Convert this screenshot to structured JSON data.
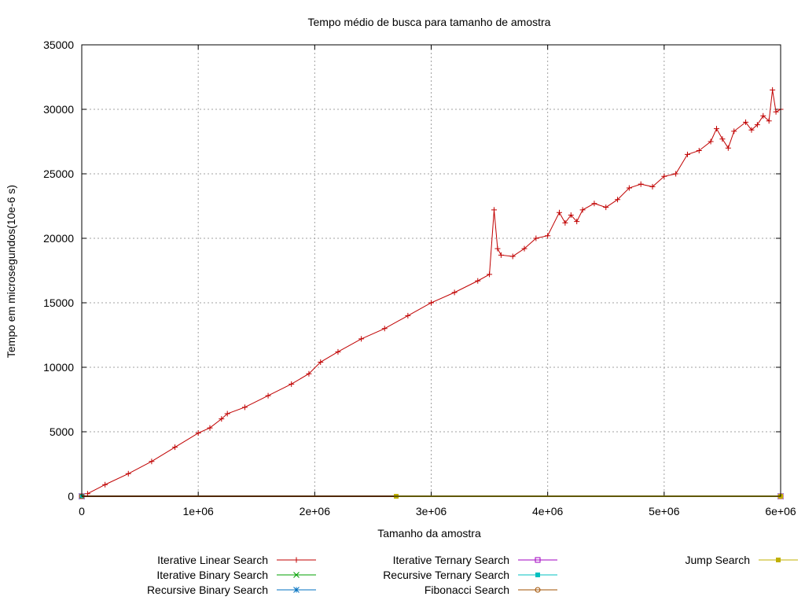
{
  "chart_data": {
    "type": "line",
    "title": "Tempo médio de busca para tamanho de amostra",
    "xlabel": "Tamanho da amostra",
    "ylabel": "Tempo em microsegundos(10e-6 s)",
    "xlim": [
      0,
      6000000
    ],
    "ylim": [
      0,
      35000
    ],
    "x_ticks": [
      0,
      1000000,
      2000000,
      3000000,
      4000000,
      5000000,
      6000000
    ],
    "x_tick_labels": [
      "0",
      "1e+06",
      "2e+06",
      "3e+06",
      "4e+06",
      "5e+06",
      "6e+06"
    ],
    "y_ticks": [
      0,
      5000,
      10000,
      15000,
      20000,
      25000,
      30000,
      35000
    ],
    "y_tick_labels": [
      "0",
      "5000",
      "10000",
      "15000",
      "20000",
      "25000",
      "30000",
      "35000"
    ],
    "grid": true,
    "legend_position": "bottom",
    "series": [
      {
        "name": "Iterative Linear Search",
        "color": "#c00000",
        "marker": "plus",
        "x": [
          50000,
          200000,
          400000,
          600000,
          800000,
          1000000,
          1100000,
          1200000,
          1250000,
          1400000,
          1600000,
          1800000,
          1950000,
          2050000,
          2200000,
          2400000,
          2600000,
          2800000,
          3000000,
          3200000,
          3400000,
          3500000,
          3540000,
          3570000,
          3600000,
          3700000,
          3800000,
          3900000,
          4000000,
          4100000,
          4150000,
          4200000,
          4250000,
          4300000,
          4400000,
          4500000,
          4600000,
          4700000,
          4800000,
          4900000,
          5000000,
          5100000,
          5200000,
          5300000,
          5400000,
          5450000,
          5500000,
          5550000,
          5600000,
          5700000,
          5750000,
          5800000,
          5850000,
          5900000,
          5930000,
          5960000,
          6000000
        ],
        "y": [
          200,
          900,
          1750,
          2700,
          3800,
          4900,
          5300,
          6000,
          6400,
          6900,
          7800,
          8700,
          9500,
          10400,
          11200,
          12200,
          13000,
          14000,
          15000,
          15800,
          16700,
          17200,
          22200,
          19200,
          18700,
          18600,
          19200,
          20000,
          20200,
          22000,
          21200,
          21800,
          21300,
          22200,
          22700,
          22400,
          23000,
          23900,
          24200,
          24000,
          24800,
          25000,
          26500,
          26800,
          27500,
          28500,
          27700,
          27000,
          28300,
          29000,
          28400,
          28800,
          29500,
          29100,
          31500,
          29800,
          30000
        ]
      },
      {
        "name": "Iterative Binary Search",
        "color": "#00a000",
        "marker": "cross",
        "x": [
          0,
          6000000
        ],
        "y": [
          0,
          0
        ]
      },
      {
        "name": "Recursive Binary Search",
        "color": "#0070c0",
        "marker": "star",
        "x": [
          0,
          6000000
        ],
        "y": [
          0,
          0
        ]
      },
      {
        "name": "Iterative Ternary Search",
        "color": "#a000c0",
        "marker": "open-square",
        "x": [
          0,
          6000000
        ],
        "y": [
          0,
          0
        ]
      },
      {
        "name": "Recursive Ternary Search",
        "color": "#00c0c0",
        "marker": "filled-square",
        "x": [
          0,
          6000000
        ],
        "y": [
          0,
          0
        ]
      },
      {
        "name": "Fibonacci Search",
        "color": "#a05000",
        "marker": "open-circle",
        "x": [
          0,
          6000000
        ],
        "y": [
          0,
          0
        ]
      },
      {
        "name": "Jump Search",
        "color": "#c0b000",
        "marker": "filled-square",
        "x": [
          2700000,
          6000000
        ],
        "y": [
          0,
          0
        ]
      }
    ]
  }
}
